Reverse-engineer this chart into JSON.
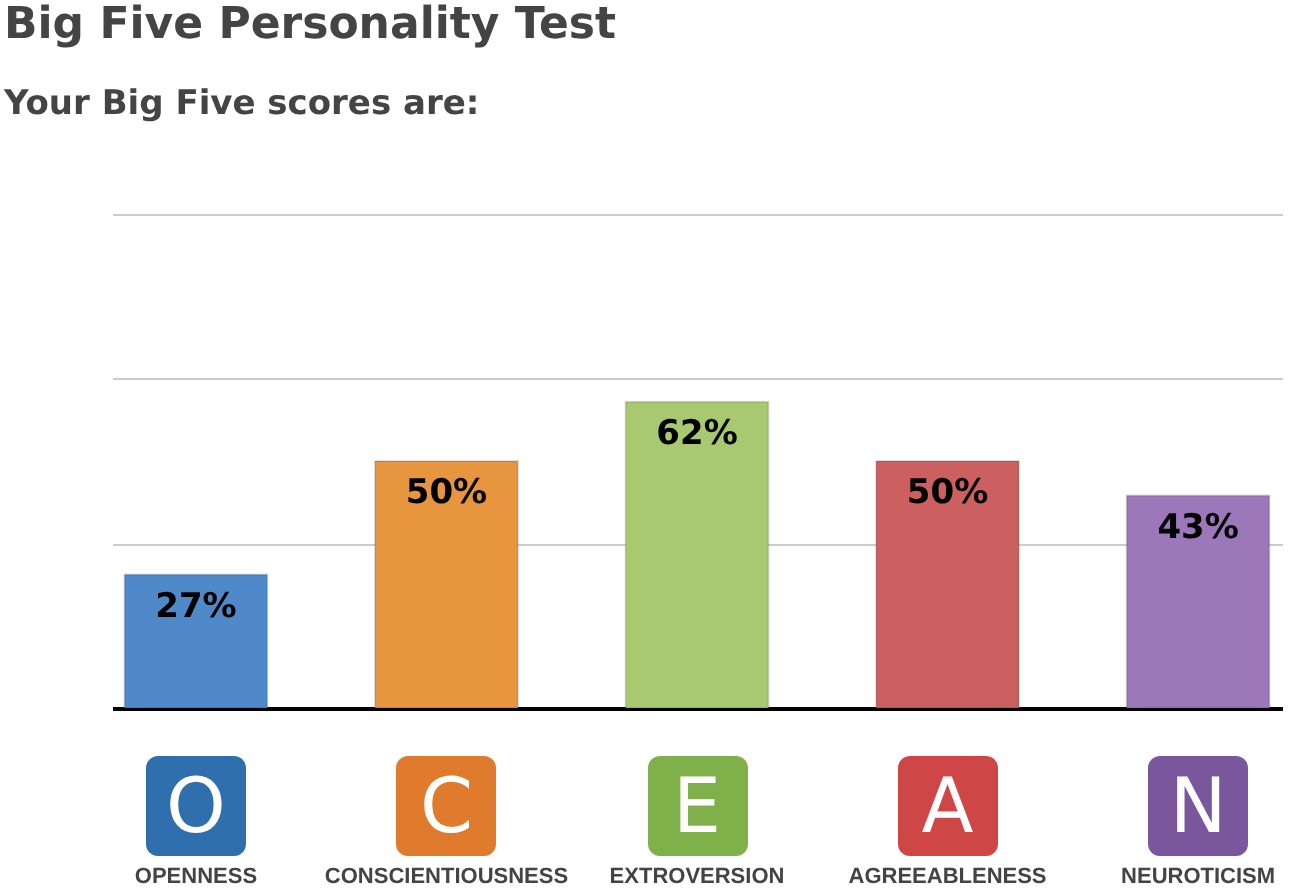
{
  "chart_data": {
    "type": "bar",
    "title": "Big Five Personality Test",
    "subtitle": "Your Big Five scores are:",
    "categories": [
      "OPENNESS",
      "CONSCIENTIOUSNESS",
      "EXTROVERSION",
      "AGREEABLENESS",
      "NEUROTICISM"
    ],
    "values": [
      27,
      50,
      62,
      50,
      43
    ],
    "value_labels": [
      "27%",
      "50%",
      "62%",
      "50%",
      "43%"
    ],
    "colors": [
      "#4f89c9",
      "#e8953f",
      "#a8c970",
      "#cc5f5f",
      "#9c78bb"
    ],
    "annotations": [
      "O",
      "C",
      "E",
      "A",
      "N"
    ],
    "ylim": [
      0,
      100
    ],
    "yticks": [
      {
        "value": 0,
        "label": null
      },
      {
        "value": 33.3,
        "label": null
      },
      {
        "value": 66.7,
        "label": null
      },
      {
        "value": 100,
        "label": null
      }
    ],
    "grid": "y",
    "tick_labels": "x"
  }
}
